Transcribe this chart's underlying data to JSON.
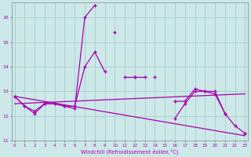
{
  "xlabel": "Windchill (Refroidissement éolien,°C)",
  "background_color": "#cce8e8",
  "grid_color": "#aacccc",
  "line_color": "#aa00aa",
  "x": [
    0,
    1,
    2,
    3,
    4,
    5,
    6,
    7,
    8,
    9,
    10,
    11,
    12,
    13,
    14,
    15,
    16,
    17,
    18,
    19,
    20,
    21,
    22,
    23
  ],
  "series1": [
    12.8,
    12.4,
    12.1,
    12.5,
    12.5,
    12.4,
    12.3,
    16.0,
    16.5,
    null,
    15.4,
    null,
    13.6,
    13.6,
    null,
    null,
    11.9,
    12.5,
    13.0,
    13.0,
    12.9,
    12.1,
    null,
    11.3
  ],
  "series3": [
    12.8,
    12.4,
    12.2,
    12.5,
    12.5,
    12.4,
    12.4,
    14.0,
    14.6,
    13.8,
    null,
    13.6,
    13.6,
    null,
    13.6,
    null,
    12.6,
    12.6,
    13.1,
    13.0,
    13.0,
    12.1,
    11.6,
    11.3
  ],
  "series4_x": [
    0,
    23
  ],
  "series4_y": [
    12.8,
    11.2
  ],
  "series5_x": [
    0,
    23
  ],
  "series5_y": [
    12.5,
    12.9
  ],
  "ylim": [
    11.0,
    16.6
  ],
  "xlim": [
    -0.3,
    23.3
  ]
}
